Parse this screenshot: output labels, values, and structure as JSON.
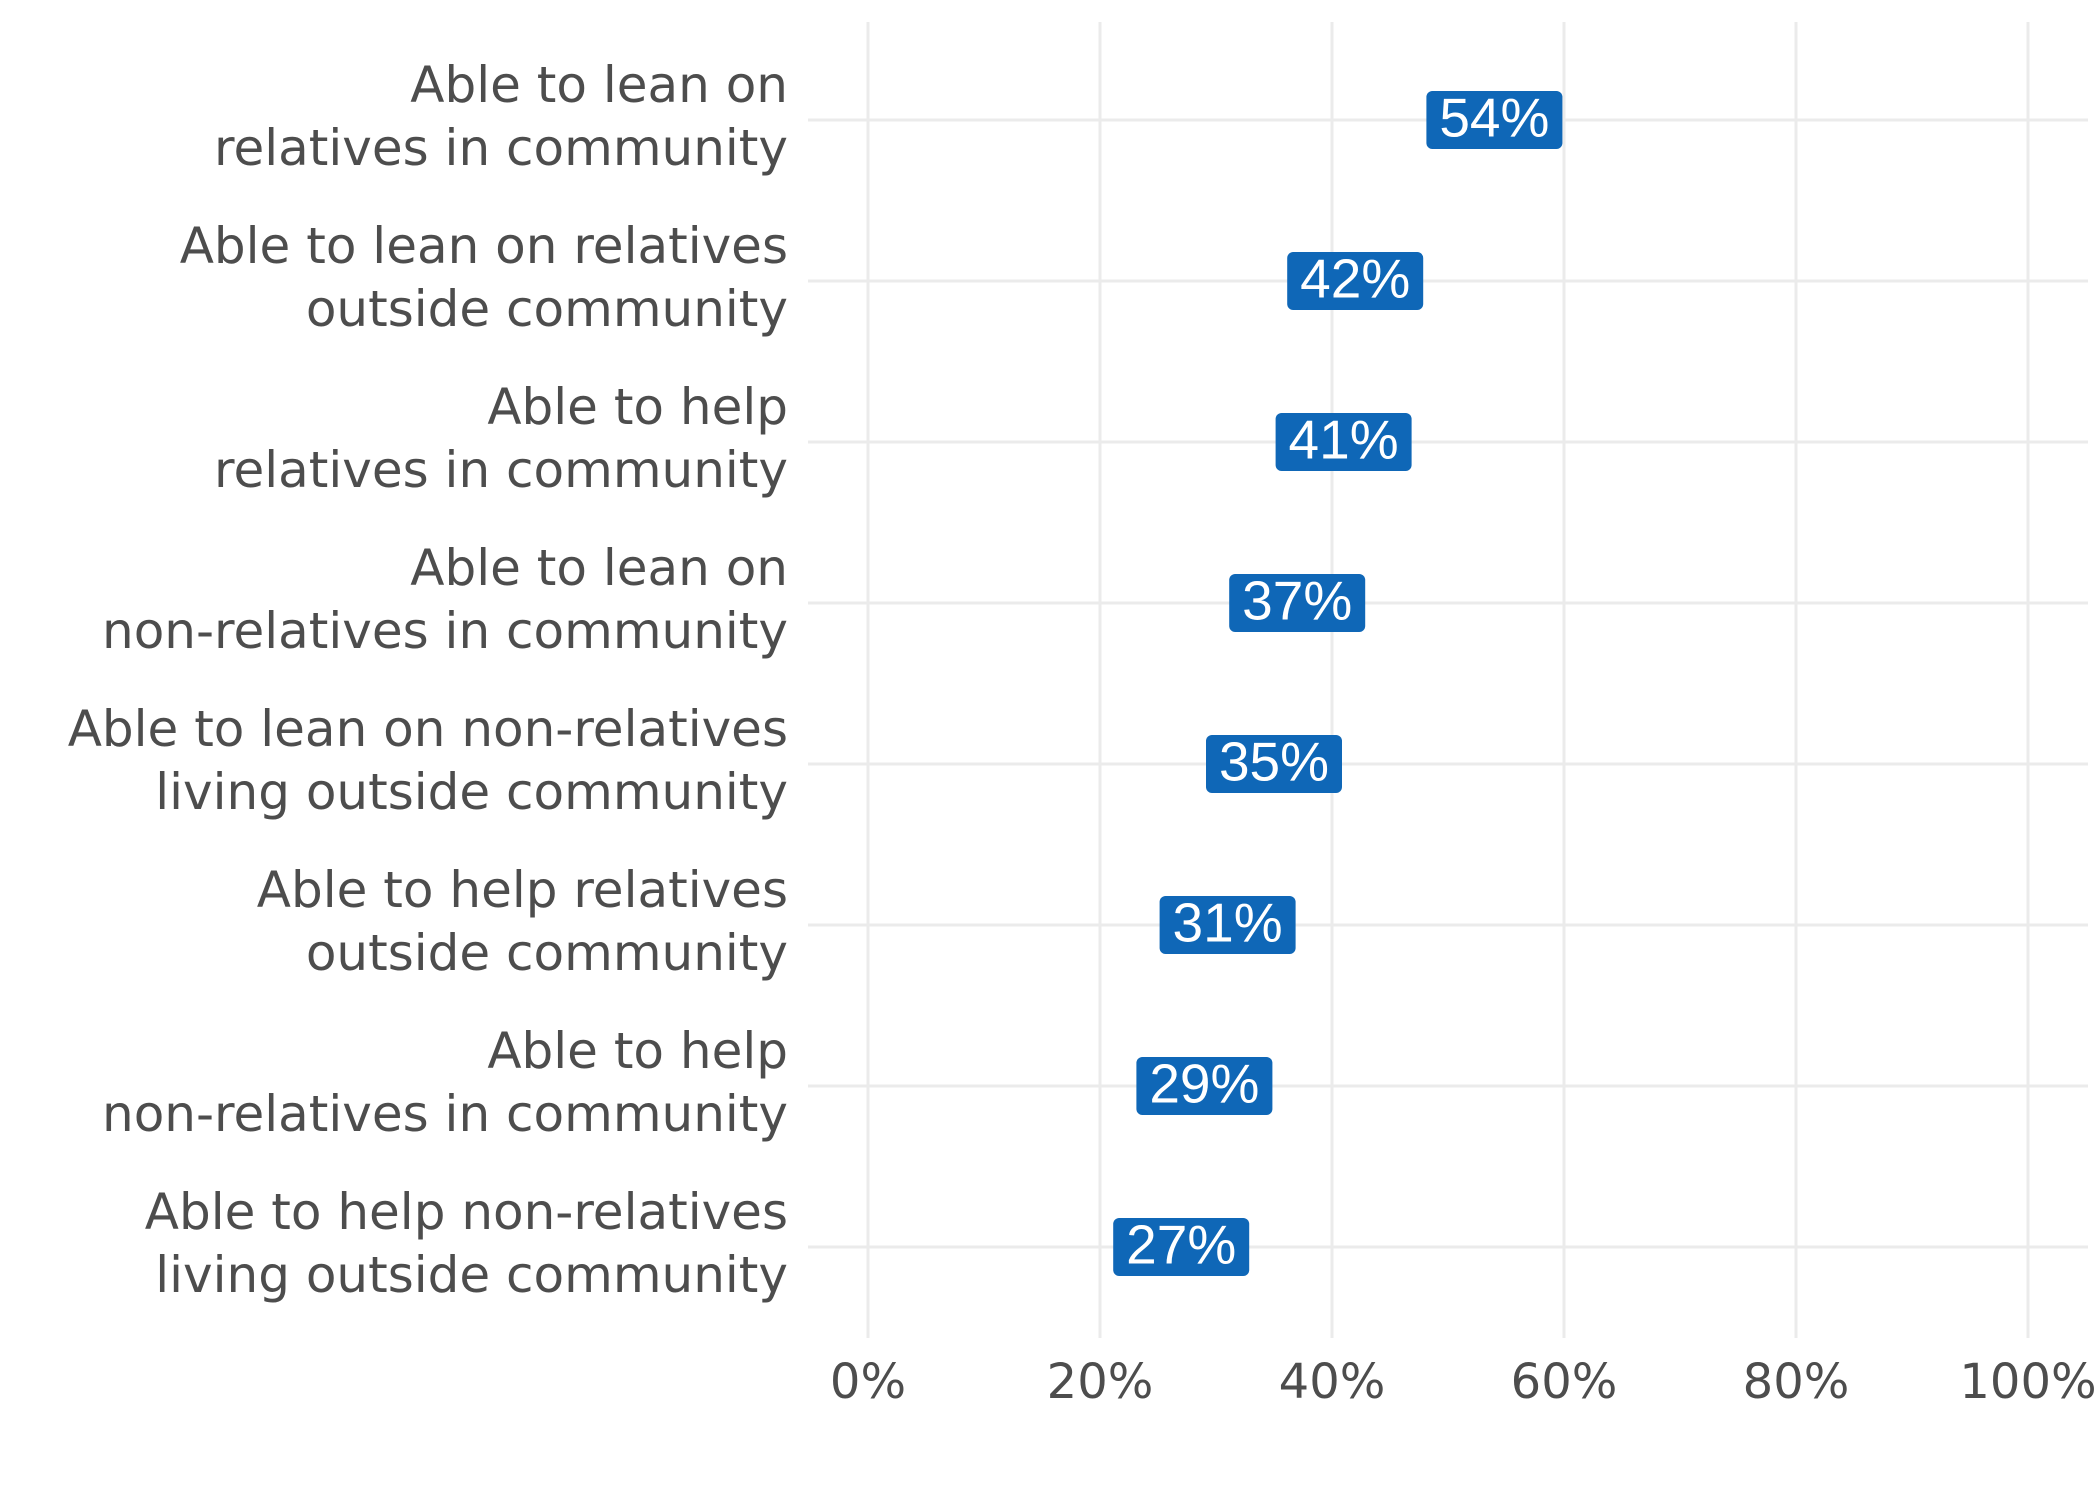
{
  "chart_data": {
    "type": "dot",
    "orientation": "horizontal",
    "categories": [
      [
        "Able to lean on",
        "relatives in community"
      ],
      [
        "Able to lean on relatives",
        "outside community"
      ],
      [
        "Able to help",
        "relatives in community"
      ],
      [
        "Able to lean on",
        "non-relatives in community"
      ],
      [
        "Able to lean on non-relatives",
        "living outside community"
      ],
      [
        "Able to help relatives",
        "outside community"
      ],
      [
        "Able to help",
        "non-relatives in community"
      ],
      [
        "Able to help non-relatives",
        "living outside community"
      ]
    ],
    "values": [
      54,
      42,
      41,
      37,
      35,
      31,
      29,
      27
    ],
    "value_labels": [
      "54%",
      "42%",
      "41%",
      "37%",
      "35%",
      "31%",
      "29%",
      "27%"
    ],
    "x_ticks": [
      0,
      20,
      40,
      60,
      80,
      100
    ],
    "x_tick_labels": [
      "0%",
      "20%",
      "40%",
      "60%",
      "80%",
      "100%"
    ],
    "xlim": [
      0,
      105
    ],
    "grid": true,
    "label_color": "#0F67B7",
    "label_text_color": "#ffffff",
    "grid_color": "#EBEBEB",
    "text_color": "#4D4D4D"
  }
}
